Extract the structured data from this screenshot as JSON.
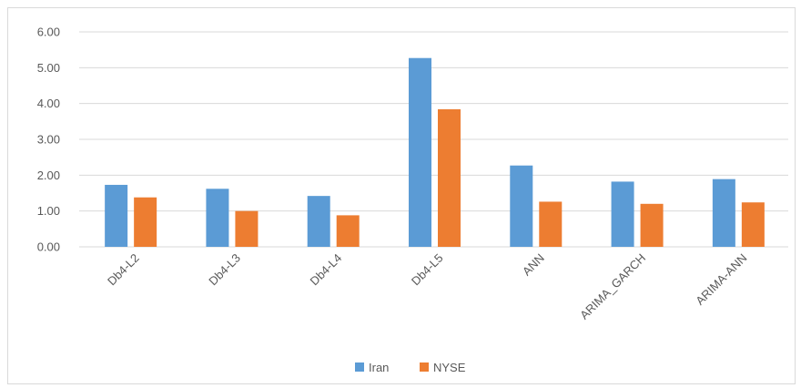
{
  "chart_data": {
    "type": "bar",
    "categories": [
      "Db4-L2",
      "Db4-L3",
      "Db4-L4",
      "Db4-L5",
      "ANN",
      "ARIMA_GARCH",
      "ARIMA-ANN"
    ],
    "series": [
      {
        "name": "Iran",
        "color": "#5b9bd5",
        "values": [
          1.73,
          1.62,
          1.42,
          5.27,
          2.27,
          1.82,
          1.89
        ]
      },
      {
        "name": "NYSE",
        "color": "#ed7d31",
        "values": [
          1.38,
          1.0,
          0.88,
          3.84,
          1.26,
          1.2,
          1.24
        ]
      }
    ],
    "yticks": [
      "0.00",
      "1.00",
      "2.00",
      "3.00",
      "4.00",
      "5.00",
      "6.00"
    ],
    "ylim": [
      0,
      6
    ],
    "grid": true,
    "legend": "bottom-center",
    "gridColor": "#d9d9d9"
  }
}
